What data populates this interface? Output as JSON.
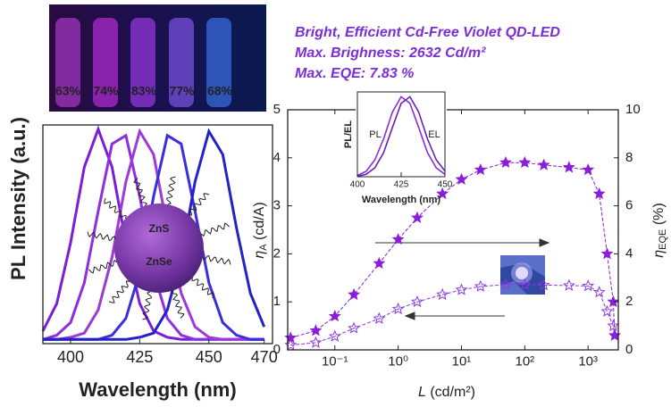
{
  "chart_data": [
    {
      "type": "line",
      "xlabel": "Wavelength (nm)",
      "ylabel": "PL Intensity (a.u.)",
      "x": [
        390,
        395,
        400,
        405,
        410,
        415,
        420,
        425,
        430,
        435,
        440,
        445,
        450,
        455,
        460,
        465,
        470
      ],
      "series": [
        {
          "color": "#7a1fd8",
          "values": [
            0.04,
            0.17,
            0.46,
            0.82,
            1,
            0.82,
            0.46,
            0.17,
            0.04,
            0.01,
            0,
            0,
            0,
            0,
            0,
            0,
            0
          ]
        },
        {
          "color": "#8e2ee0",
          "values": [
            0,
            0.02,
            0.08,
            0.27,
            0.61,
            0.93,
            0.97,
            0.68,
            0.32,
            0.1,
            0.02,
            0,
            0,
            0,
            0,
            0,
            0
          ]
        },
        {
          "color": "#9b3ad8",
          "values": [
            0,
            0,
            0.01,
            0.03,
            0.14,
            0.39,
            0.75,
            0.99,
            0.88,
            0.53,
            0.22,
            0.06,
            0.01,
            0,
            0,
            0,
            0
          ]
        },
        {
          "color": "#3a2ee0",
          "values": [
            0,
            0,
            0,
            0,
            0,
            0.02,
            0.1,
            0.32,
            0.68,
            0.97,
            0.93,
            0.61,
            0.27,
            0.08,
            0.02,
            0,
            0
          ]
        },
        {
          "color": "#2222c8",
          "values": [
            0,
            0,
            0,
            0,
            0,
            0,
            0,
            0.01,
            0.03,
            0.14,
            0.39,
            0.75,
            0.99,
            0.88,
            0.53,
            0.22,
            0.06
          ]
        }
      ],
      "xlim": [
        390,
        473
      ],
      "ylim": [
        -0.02,
        1.02
      ],
      "xticks": [
        400,
        425,
        450,
        470
      ],
      "photo_labels": [
        "63%",
        "74%",
        "83%",
        "77%",
        "68%"
      ],
      "particle_labels": [
        "ZnS",
        "ZnSe"
      ]
    },
    {
      "type": "line",
      "title": [
        "Bright, Efficient Cd-Free Violet QD-LED",
        "Max. Brighness: 2632 Cd/m²",
        "Max. EQE: 7.83 %"
      ],
      "xlabel": {
        "symbol": "L",
        "unit": "(cd/m²)"
      },
      "ylabel": {
        "symbol": "η",
        "sub": "A",
        "unit": "(cd/A)"
      },
      "y2label": {
        "symbol": "η",
        "sub": "EQE",
        "unit": "(%)"
      },
      "log_x": true,
      "x": [
        0.02,
        0.05,
        0.1,
        0.2,
        0.5,
        1,
        2,
        5,
        10,
        20,
        50,
        100,
        200,
        500,
        1000,
        1500,
        2000,
        2500,
        2632
      ],
      "series": [
        {
          "color": "#8a3ae0",
          "marker": "open-star",
          "values": [
            0.1,
            0.15,
            0.28,
            0.45,
            0.65,
            0.85,
            1.0,
            1.15,
            1.25,
            1.32,
            1.36,
            1.36,
            1.35,
            1.34,
            1.33,
            1.2,
            0.8,
            0.5,
            0.3
          ]
        },
        {
          "color": "#8a1fd8",
          "marker": "star",
          "axis": "y2",
          "values": [
            0.5,
            0.8,
            1.4,
            2.3,
            3.6,
            4.6,
            5.5,
            6.5,
            7.1,
            7.5,
            7.8,
            7.8,
            7.7,
            7.6,
            7.5,
            6.5,
            4,
            2,
            0.6
          ]
        }
      ],
      "xlim": [
        0.018,
        3000
      ],
      "xticks": [
        {
          "value": 0.1,
          "label": "10⁻¹"
        },
        {
          "value": 1,
          "label": "10⁰"
        },
        {
          "value": 10,
          "label": "10¹"
        },
        {
          "value": 100,
          "label": "10²"
        },
        {
          "value": 1000,
          "label": "10³"
        }
      ],
      "ylim": [
        0,
        5
      ],
      "yticks": [
        0,
        1,
        2,
        3,
        4,
        5
      ],
      "y2lim": [
        0,
        10
      ],
      "y2ticks": [
        0,
        2,
        4,
        6,
        8,
        10
      ]
    },
    {
      "type": "line",
      "xlabel": "Wavelength (nm)",
      "ylabel": "PL/EL",
      "x": [
        400,
        405,
        410,
        415,
        420,
        425,
        430,
        435,
        440,
        445,
        450
      ],
      "series": [
        {
          "name": "PL",
          "color": "#8a2be2",
          "values": [
            0.015,
            0.066,
            0.21,
            0.47,
            0.8,
            0.99,
            0.91,
            0.61,
            0.3,
            0.11,
            0.03
          ]
        },
        {
          "name": "EL",
          "color": "#6a1fb8",
          "values": [
            0.006,
            0.03,
            0.11,
            0.3,
            0.61,
            0.91,
            0.99,
            0.8,
            0.47,
            0.21,
            0.07
          ]
        }
      ],
      "xlim": [
        400,
        450
      ],
      "ylim": [
        0,
        1.05
      ],
      "xticks": [
        400,
        425,
        450
      ]
    }
  ]
}
